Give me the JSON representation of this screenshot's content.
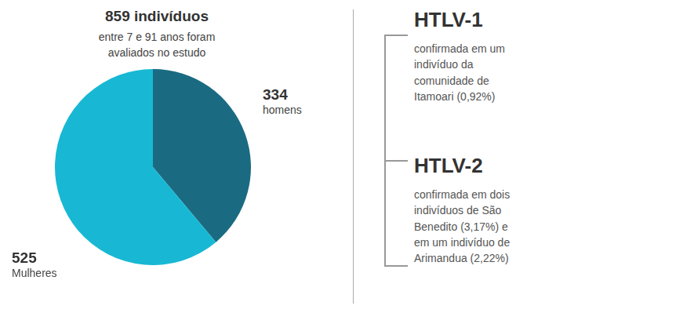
{
  "chart_data": {
    "type": "pie",
    "title": "859 indivíduos",
    "subtitle": "entre 7 e 91 anos foram\navaliados no estudo",
    "categories": [
      "homens",
      "Mulheres"
    ],
    "values": [
      334,
      525
    ],
    "colors": [
      "#1a6b82",
      "#18b8d4"
    ],
    "annotations": [
      "HTLV-1",
      "confirmada em um\nindivíduo da\ncomunidade de\nItamoari (0,92%)",
      "HTLV-2",
      "confirmada em dois\nindivíduos de São\nBenedito (3,17%) e\nem um indivíduo de\nArimandua (2,22%)"
    ]
  }
}
